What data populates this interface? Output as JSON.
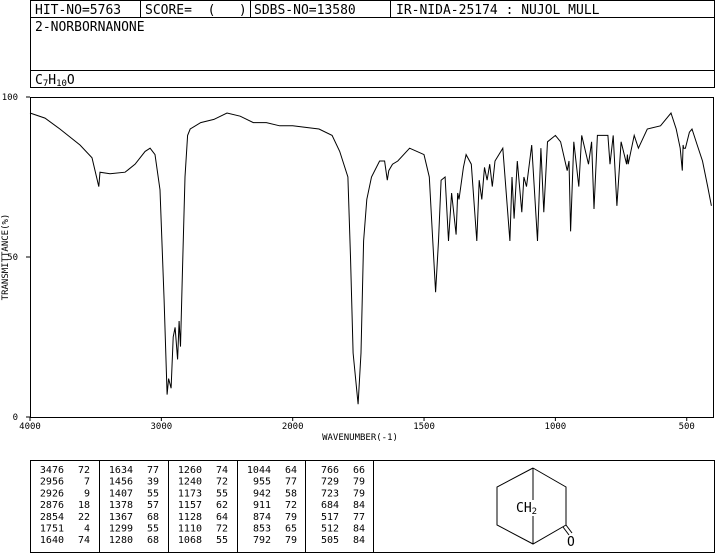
{
  "header": {
    "hit": "HIT-NO=5763",
    "score": "SCORE=  (   )",
    "sdbs": "SDBS-NO=13580",
    "source": "IR-NIDA-25174 : NUJOL MULL"
  },
  "name": "2-NORBORNANONE",
  "formula": [
    "C",
    "7",
    "H",
    "10",
    "O"
  ],
  "chart_data": {
    "type": "line",
    "xlabel": "WAVENUMBER(-1)",
    "ylabel": "TRANSMITTANCE(%)",
    "xlim": [
      4000,
      400
    ],
    "x_break": 2000,
    "ylim": [
      0,
      100
    ],
    "xticks": [
      4000,
      3000,
      2000,
      1500,
      1000,
      500
    ],
    "yticks": [
      0,
      50,
      100
    ],
    "color": "#000000",
    "x": [
      4000,
      3886,
      3772,
      3619,
      3528,
      3476,
      3467,
      3391,
      3276,
      3200,
      3124,
      3086,
      3048,
      3010,
      2979,
      2956,
      2945,
      2926,
      2910,
      2895,
      2876,
      2865,
      2854,
      2840,
      2820,
      2800,
      2780,
      2700,
      2600,
      2500,
      2400,
      2300,
      2200,
      2100,
      2000,
      1900,
      1850,
      1821,
      1790,
      1780,
      1770,
      1751,
      1740,
      1730,
      1718,
      1700,
      1669,
      1650,
      1640,
      1634,
      1620,
      1600,
      1555,
      1500,
      1480,
      1470,
      1456,
      1445,
      1435,
      1420,
      1407,
      1395,
      1378,
      1372,
      1367,
      1350,
      1340,
      1320,
      1299,
      1290,
      1280,
      1270,
      1260,
      1250,
      1240,
      1230,
      1200,
      1173,
      1165,
      1157,
      1145,
      1128,
      1120,
      1110,
      1090,
      1068,
      1055,
      1044,
      1030,
      1000,
      980,
      955,
      948,
      942,
      930,
      911,
      900,
      874,
      862,
      853,
      840,
      800,
      792,
      780,
      766,
      750,
      729,
      726,
      723,
      700,
      684,
      650,
      600,
      560,
      540,
      525,
      517,
      514,
      512,
      505,
      490,
      480,
      460,
      440,
      420,
      406
    ],
    "values": [
      95,
      93.4,
      90,
      85,
      81,
      72,
      76.5,
      76,
      76.5,
      79,
      83,
      84,
      82,
      71,
      36.6,
      7,
      12,
      9,
      25,
      28,
      18,
      30,
      22,
      45,
      75,
      88,
      90,
      92,
      93,
      95,
      94,
      92,
      92,
      91,
      91,
      90,
      88,
      83,
      75,
      50,
      20,
      4,
      20,
      55,
      68,
      75,
      80,
      80,
      74,
      77,
      79,
      80,
      84,
      82,
      75,
      60,
      39,
      55,
      74,
      75,
      55,
      70,
      57,
      70,
      68,
      78,
      82,
      79,
      55,
      74,
      68,
      78,
      74,
      79,
      72,
      80,
      84,
      55,
      75,
      62,
      80,
      64,
      75,
      72,
      85,
      55,
      84,
      64,
      86,
      88,
      86,
      77,
      80,
      58,
      86,
      72,
      88,
      79,
      86,
      65,
      88,
      88,
      79,
      88,
      66,
      86,
      79,
      82,
      79,
      88,
      84,
      90,
      91,
      95,
      90,
      84,
      77,
      85,
      84,
      84,
      89,
      90,
      85,
      80,
      72,
      66
    ]
  },
  "peaks": [
    [
      [
        3476,
        72
      ],
      [
        2956,
        7
      ],
      [
        2926,
        9
      ],
      [
        2876,
        18
      ],
      [
        2854,
        22
      ],
      [
        1751,
        4
      ],
      [
        1640,
        74
      ]
    ],
    [
      [
        1634,
        77
      ],
      [
        1456,
        39
      ],
      [
        1407,
        55
      ],
      [
        1378,
        57
      ],
      [
        1367,
        68
      ],
      [
        1299,
        55
      ],
      [
        1280,
        68
      ]
    ],
    [
      [
        1260,
        74
      ],
      [
        1240,
        72
      ],
      [
        1173,
        55
      ],
      [
        1157,
        62
      ],
      [
        1128,
        64
      ],
      [
        1110,
        72
      ],
      [
        1068,
        55
      ]
    ],
    [
      [
        1044,
        64
      ],
      [
        955,
        77
      ],
      [
        942,
        58
      ],
      [
        911,
        72
      ],
      [
        874,
        79
      ],
      [
        853,
        65
      ],
      [
        792,
        79
      ]
    ],
    [
      [
        766,
        66
      ],
      [
        729,
        79
      ],
      [
        723,
        79
      ],
      [
        684,
        84
      ],
      [
        517,
        77
      ],
      [
        512,
        84
      ],
      [
        505,
        84
      ]
    ]
  ],
  "structure": {
    "group": [
      "CH",
      "2"
    ],
    "oxygen": "O"
  }
}
